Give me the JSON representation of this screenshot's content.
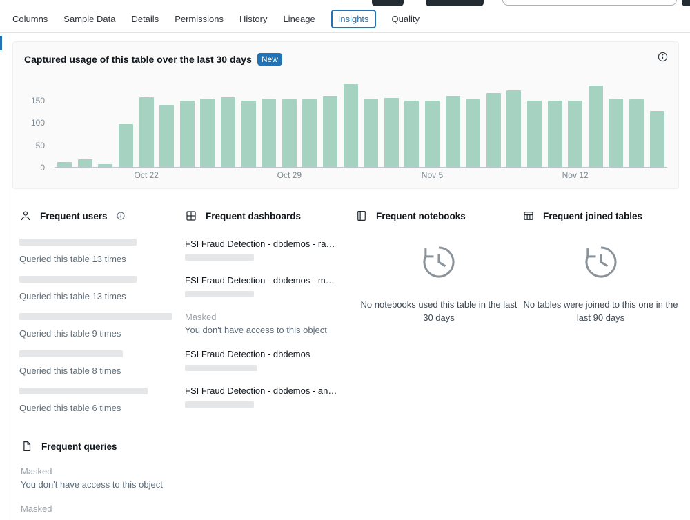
{
  "colors": {
    "accent_blue": "#2272b4",
    "bar_green": "#a6d3c1"
  },
  "tabs": {
    "selected": "Insights",
    "items": [
      {
        "key": "columns",
        "label": "Columns"
      },
      {
        "key": "sample-data",
        "label": "Sample Data"
      },
      {
        "key": "details",
        "label": "Details"
      },
      {
        "key": "permissions",
        "label": "Permissions"
      },
      {
        "key": "history",
        "label": "History"
      },
      {
        "key": "lineage",
        "label": "Lineage"
      },
      {
        "key": "insights",
        "label": "Insights"
      },
      {
        "key": "quality",
        "label": "Quality"
      }
    ]
  },
  "usage_card": {
    "title": "Captured usage of this table over the last 30 days",
    "badge": "New"
  },
  "chart_data": {
    "type": "bar",
    "title": "Captured usage of this table over the last 30 days",
    "xlabel": "",
    "ylabel": "",
    "ylim": [
      0,
      200
    ],
    "yticks": [
      0,
      50,
      100,
      150
    ],
    "grid": false,
    "legend": false,
    "bar_color": "#a6d3c1",
    "x_tick_labels": [
      {
        "index": 4,
        "label": "Oct 22"
      },
      {
        "index": 11,
        "label": "Oct 29"
      },
      {
        "index": 18,
        "label": "Nov 5"
      },
      {
        "index": 25,
        "label": "Nov 12"
      }
    ],
    "values": [
      11,
      17,
      6,
      95,
      156,
      138,
      147,
      153,
      156,
      148,
      153,
      150,
      150,
      158,
      185,
      153,
      154,
      148,
      148,
      159,
      150,
      165,
      170,
      148,
      148,
      147,
      182,
      153,
      150,
      124
    ]
  },
  "sections": {
    "frequent_users": {
      "title": "Frequent users",
      "items": [
        {
          "redacted_width": 170,
          "subtitle": "Queried this table 13 times"
        },
        {
          "redacted_width": 170,
          "subtitle": "Queried this table 13 times"
        },
        {
          "redacted_width": 222,
          "subtitle": "Queried this table 9 times"
        },
        {
          "redacted_width": 150,
          "subtitle": "Queried this table 8 times"
        },
        {
          "redacted_width": 186,
          "subtitle": "Queried this table 6 times"
        }
      ]
    },
    "frequent_dashboards": {
      "title": "Frequent dashboards",
      "items": [
        {
          "type": "dashboard",
          "title": "FSI Fraud Detection - dbdemos - ra…",
          "redacted_width": 100
        },
        {
          "type": "dashboard",
          "title": "FSI Fraud Detection - dbdemos - m…",
          "redacted_width": 100
        },
        {
          "type": "masked",
          "label": "Masked",
          "text": "You don't have access to this object"
        },
        {
          "type": "dashboard",
          "title": "FSI Fraud Detection - dbdemos",
          "redacted_width": 105
        },
        {
          "type": "dashboard",
          "title": "FSI Fraud Detection - dbdemos - an…",
          "redacted_width": 100
        }
      ]
    },
    "frequent_notebooks": {
      "title": "Frequent notebooks",
      "empty_text": "No notebooks used this table in the last 30 days"
    },
    "frequent_joined_tables": {
      "title": "Frequent joined tables",
      "empty_text": "No tables were joined to this one in the last 90 days"
    },
    "frequent_queries": {
      "title": "Frequent queries",
      "items": [
        {
          "label": "Masked",
          "text": "You don't have access to this object"
        },
        {
          "label": "Masked",
          "text": ""
        }
      ]
    }
  }
}
